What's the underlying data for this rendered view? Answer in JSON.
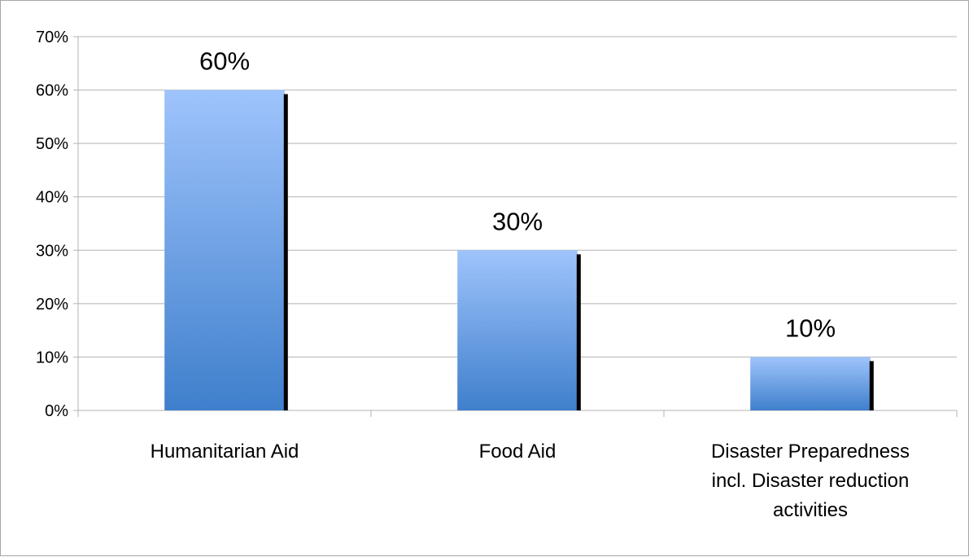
{
  "chart_data": {
    "type": "bar",
    "categories": [
      [
        "Humanitarian Aid"
      ],
      [
        "Food Aid"
      ],
      [
        "Disaster Preparedness",
        "incl. Disaster reduction",
        "activities"
      ]
    ],
    "values": [
      60,
      30,
      10
    ],
    "value_labels": [
      "60%",
      "30%",
      "10%"
    ],
    "ylim": [
      0,
      70
    ],
    "yticks": [
      0,
      10,
      20,
      30,
      40,
      50,
      60,
      70
    ],
    "ytick_labels": [
      "0%",
      "10%",
      "20%",
      "30%",
      "40%",
      "50%",
      "60%",
      "70%"
    ],
    "title": "",
    "xlabel": "",
    "ylabel": "",
    "grid": true,
    "legend": "none",
    "colors": {
      "bar_top": "#9fc4fc",
      "bar_bottom": "#3f7fcc",
      "bar_shadow": "#000000",
      "gridline": "#b3b3b3",
      "axis": "#b3b3b3"
    }
  }
}
